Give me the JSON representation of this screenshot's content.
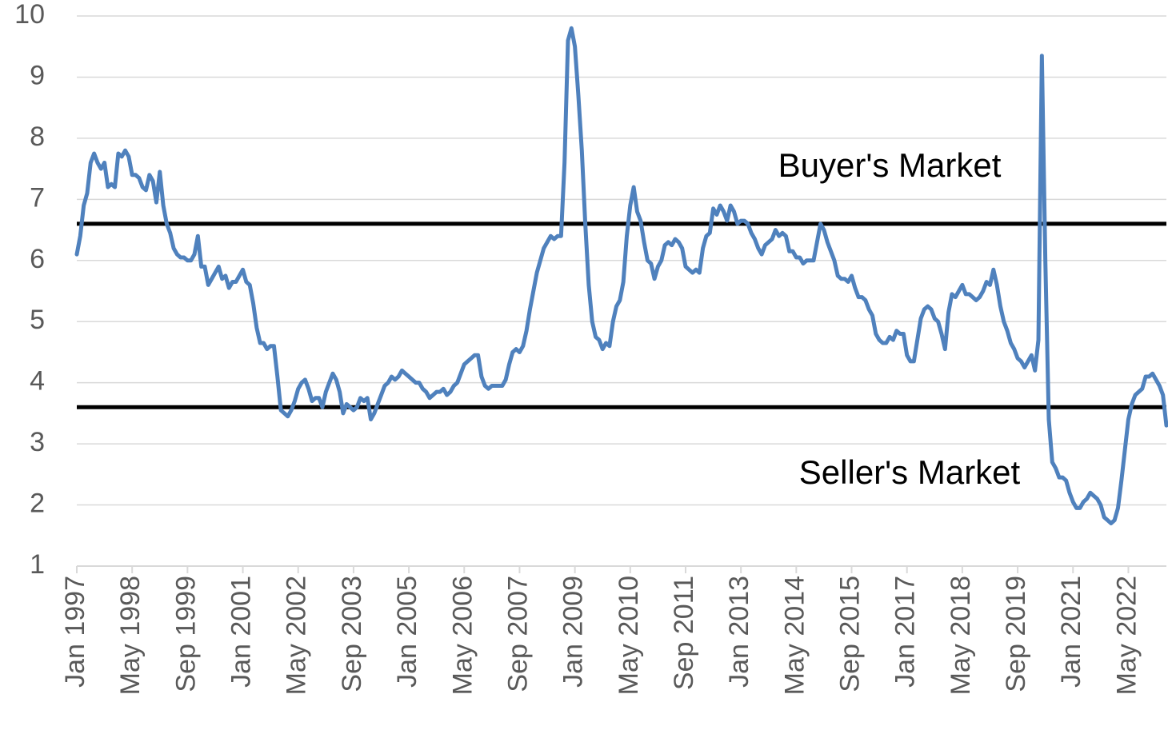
{
  "chart_data": {
    "type": "line",
    "categories": [
      "Jan 1997",
      null,
      null,
      null,
      null,
      null,
      null,
      null,
      null,
      null,
      null,
      null,
      null,
      null,
      null,
      null,
      "May 1998",
      null,
      null,
      null,
      null,
      null,
      null,
      null,
      null,
      null,
      null,
      null,
      null,
      null,
      null,
      null,
      "Sep 1999",
      null,
      null,
      null,
      null,
      null,
      null,
      null,
      null,
      null,
      null,
      null,
      null,
      null,
      null,
      null,
      "Jan 2001",
      null,
      null,
      null,
      null,
      null,
      null,
      null,
      null,
      null,
      null,
      null,
      null,
      null,
      null,
      null,
      "May 2002",
      null,
      null,
      null,
      null,
      null,
      null,
      null,
      null,
      null,
      null,
      null,
      null,
      null,
      null,
      null,
      "Sep 2003",
      null,
      null,
      null,
      null,
      null,
      null,
      null,
      null,
      null,
      null,
      null,
      null,
      null,
      null,
      null,
      "Jan 2005",
      null,
      null,
      null,
      null,
      null,
      null,
      null,
      null,
      null,
      null,
      null,
      null,
      null,
      null,
      null,
      "May 2006",
      null,
      null,
      null,
      null,
      null,
      null,
      null,
      null,
      null,
      null,
      null,
      null,
      null,
      null,
      null,
      "Sep 2007",
      null,
      null,
      null,
      null,
      null,
      null,
      null,
      null,
      null,
      null,
      null,
      null,
      null,
      null,
      null,
      "Jan 2009",
      null,
      null,
      null,
      null,
      null,
      null,
      null,
      null,
      null,
      null,
      null,
      null,
      null,
      null,
      null,
      "May 2010",
      null,
      null,
      null,
      null,
      null,
      null,
      null,
      null,
      null,
      null,
      null,
      null,
      null,
      null,
      null,
      "Sep 2011",
      null,
      null,
      null,
      null,
      null,
      null,
      null,
      null,
      null,
      null,
      null,
      null,
      null,
      null,
      null,
      "Jan 2013",
      null,
      null,
      null,
      null,
      null,
      null,
      null,
      null,
      null,
      null,
      null,
      null,
      null,
      null,
      null,
      "May 2014",
      null,
      null,
      null,
      null,
      null,
      null,
      null,
      null,
      null,
      null,
      null,
      null,
      null,
      null,
      null,
      "Sep 2015",
      null,
      null,
      null,
      null,
      null,
      null,
      null,
      null,
      null,
      null,
      null,
      null,
      null,
      null,
      null,
      "Jan 2017",
      null,
      null,
      null,
      null,
      null,
      null,
      null,
      null,
      null,
      null,
      null,
      null,
      null,
      null,
      null,
      "May 2018",
      null,
      null,
      null,
      null,
      null,
      null,
      null,
      null,
      null,
      null,
      null,
      null,
      null,
      null,
      null,
      "Sep 2019",
      null,
      null,
      null,
      null,
      null,
      null,
      null,
      null,
      null,
      null,
      null,
      null,
      null,
      null,
      null,
      "Jan 2021",
      null,
      null,
      null,
      null,
      null,
      null,
      null,
      null,
      null,
      null,
      null,
      null,
      null,
      null,
      null,
      "May 2022",
      null,
      null,
      null,
      null,
      null,
      null,
      null,
      null,
      null,
      null,
      null
    ],
    "series": [
      {
        "color": "#4f81bd",
        "values": [
          6.1,
          6.4,
          6.9,
          7.1,
          7.6,
          7.75,
          7.6,
          7.5,
          7.6,
          7.2,
          7.25,
          7.2,
          7.75,
          7.7,
          7.8,
          7.7,
          7.4,
          7.4,
          7.35,
          7.2,
          7.15,
          7.4,
          7.3,
          6.95,
          7.45,
          6.9,
          6.6,
          6.45,
          6.2,
          6.1,
          6.05,
          6.05,
          6.0,
          6.0,
          6.1,
          6.4,
          5.9,
          5.9,
          5.6,
          5.7,
          5.8,
          5.9,
          5.7,
          5.75,
          5.55,
          5.65,
          5.65,
          5.75,
          5.85,
          5.65,
          5.6,
          5.3,
          4.9,
          4.65,
          4.65,
          4.55,
          4.6,
          4.6,
          4.1,
          3.55,
          3.5,
          3.45,
          3.55,
          3.7,
          3.9,
          4.0,
          4.05,
          3.9,
          3.7,
          3.75,
          3.75,
          3.6,
          3.85,
          4.0,
          4.15,
          4.05,
          3.85,
          3.5,
          3.65,
          3.6,
          3.55,
          3.6,
          3.75,
          3.7,
          3.75,
          3.4,
          3.5,
          3.65,
          3.8,
          3.95,
          4.0,
          4.1,
          4.05,
          4.1,
          4.2,
          4.15,
          4.1,
          4.05,
          4.0,
          4.0,
          3.9,
          3.85,
          3.75,
          3.8,
          3.85,
          3.85,
          3.9,
          3.8,
          3.85,
          3.95,
          4.0,
          4.15,
          4.3,
          4.35,
          4.4,
          4.45,
          4.45,
          4.1,
          3.95,
          3.9,
          3.95,
          3.95,
          3.95,
          3.95,
          4.05,
          4.3,
          4.5,
          4.55,
          4.5,
          4.6,
          4.85,
          5.2,
          5.5,
          5.8,
          6.0,
          6.2,
          6.3,
          6.4,
          6.35,
          6.4,
          6.4,
          7.6,
          9.6,
          9.8,
          9.5,
          8.7,
          7.8,
          6.6,
          5.6,
          5.0,
          4.75,
          4.7,
          4.55,
          4.65,
          4.6,
          5.0,
          5.25,
          5.35,
          5.65,
          6.4,
          6.9,
          7.2,
          6.8,
          6.65,
          6.3,
          6.0,
          5.95,
          5.7,
          5.9,
          6.0,
          6.25,
          6.3,
          6.25,
          6.35,
          6.3,
          6.2,
          5.9,
          5.85,
          5.8,
          5.85,
          5.8,
          6.2,
          6.4,
          6.45,
          6.85,
          6.75,
          6.9,
          6.8,
          6.65,
          6.9,
          6.8,
          6.6,
          6.65,
          6.65,
          6.6,
          6.45,
          6.35,
          6.2,
          6.1,
          6.25,
          6.3,
          6.35,
          6.5,
          6.4,
          6.45,
          6.4,
          6.15,
          6.15,
          6.05,
          6.05,
          5.95,
          6.0,
          6.0,
          6.0,
          6.3,
          6.6,
          6.5,
          6.3,
          6.15,
          6.0,
          5.75,
          5.7,
          5.7,
          5.65,
          5.75,
          5.55,
          5.4,
          5.4,
          5.35,
          5.2,
          5.1,
          4.8,
          4.7,
          4.65,
          4.65,
          4.75,
          4.7,
          4.85,
          4.8,
          4.8,
          4.45,
          4.35,
          4.35,
          4.7,
          5.05,
          5.2,
          5.25,
          5.2,
          5.05,
          5.0,
          4.8,
          4.55,
          5.15,
          5.45,
          5.4,
          5.5,
          5.6,
          5.45,
          5.45,
          5.4,
          5.35,
          5.4,
          5.5,
          5.65,
          5.6,
          5.85,
          5.6,
          5.25,
          5.0,
          4.85,
          4.65,
          4.55,
          4.4,
          4.35,
          4.25,
          4.35,
          4.45,
          4.2,
          4.7,
          9.35,
          6.0,
          3.4,
          2.7,
          2.6,
          2.45,
          2.45,
          2.4,
          2.2,
          2.05,
          1.95,
          1.95,
          2.05,
          2.1,
          2.2,
          2.15,
          2.1,
          2.0,
          1.8,
          1.75,
          1.7,
          1.75,
          1.95,
          2.4,
          2.9,
          3.4,
          3.65,
          3.8,
          3.85,
          3.9,
          4.1,
          4.1,
          4.15,
          4.05,
          3.95,
          3.8,
          3.3
        ]
      }
    ],
    "ylim": [
      1,
      10
    ],
    "yticks": [
      1,
      2,
      3,
      4,
      5,
      6,
      7,
      8,
      9,
      10
    ],
    "grid": true,
    "reference_lines": [
      6.6,
      3.6
    ],
    "annotations": [
      "Buyer's Market",
      "Seller's Market"
    ]
  }
}
